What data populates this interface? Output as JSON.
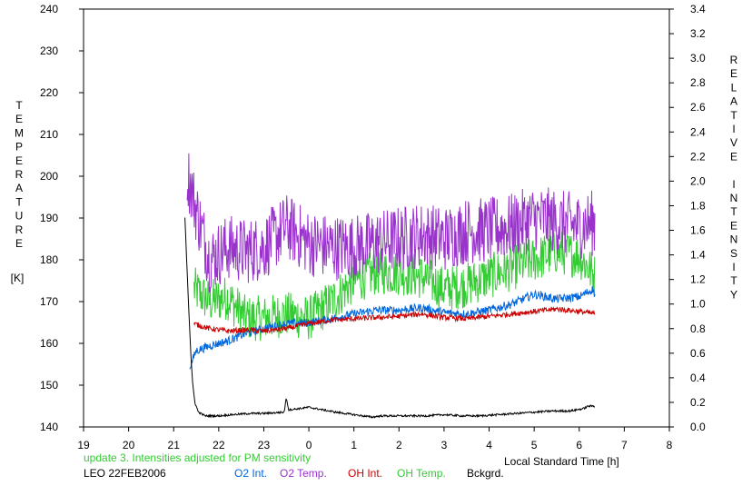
{
  "chart_data": {
    "type": "line",
    "x": {
      "label": "Local Standard Time [h]",
      "range": [
        19,
        32
      ],
      "ticks": [
        {
          "v": 19,
          "t": "19"
        },
        {
          "v": 20,
          "t": "20"
        },
        {
          "v": 21,
          "t": "21"
        },
        {
          "v": 22,
          "t": "22"
        },
        {
          "v": 23,
          "t": "23"
        },
        {
          "v": 24,
          "t": "0"
        },
        {
          "v": 25,
          "t": "1"
        },
        {
          "v": 26,
          "t": "2"
        },
        {
          "v": 27,
          "t": "3"
        },
        {
          "v": 28,
          "t": "4"
        },
        {
          "v": 29,
          "t": "5"
        },
        {
          "v": 30,
          "t": "6"
        },
        {
          "v": 31,
          "t": "7"
        },
        {
          "v": 32,
          "t": "8"
        }
      ]
    },
    "y_left": {
      "label_chars": [
        "T",
        "E",
        "M",
        "P",
        "E",
        "R",
        "A",
        "T",
        "U",
        "R",
        "E"
      ],
      "unit": "[K]",
      "range": [
        140,
        240
      ],
      "ticks": [
        "140",
        "150",
        "160",
        "170",
        "180",
        "190",
        "200",
        "210",
        "220",
        "230",
        "240"
      ]
    },
    "y_right": {
      "label_chars": [
        "R",
        "E",
        "L",
        "A",
        "T",
        "I",
        "V",
        "E",
        " ",
        "I",
        "N",
        "T",
        "E",
        "N",
        "S",
        "I",
        "T",
        "Y"
      ],
      "range": [
        0.0,
        3.4
      ],
      "ticks": [
        "0.0",
        "0.2",
        "0.4",
        "0.6",
        "0.8",
        "1.0",
        "1.2",
        "1.4",
        "1.6",
        "1.8",
        "2.0",
        "2.2",
        "2.4",
        "2.6",
        "2.8",
        "3.0",
        "3.2",
        "3.4"
      ]
    },
    "note": "update 3. Intensities adjusted for PM sensitivity",
    "station": "LEO 22FEB2006",
    "series": [
      {
        "name": "O2 Int.",
        "axis": "right",
        "color": "#0066dd",
        "noise": 0.035,
        "points": [
          [
            21.35,
            0.48
          ],
          [
            21.5,
            0.62
          ],
          [
            21.8,
            0.66
          ],
          [
            22.2,
            0.7
          ],
          [
            22.6,
            0.76
          ],
          [
            23.0,
            0.8
          ],
          [
            23.5,
            0.84
          ],
          [
            24.0,
            0.85
          ],
          [
            24.5,
            0.88
          ],
          [
            25.0,
            0.92
          ],
          [
            25.5,
            0.95
          ],
          [
            26.0,
            0.95
          ],
          [
            26.5,
            0.97
          ],
          [
            27.0,
            0.93
          ],
          [
            27.5,
            0.92
          ],
          [
            28.0,
            0.95
          ],
          [
            28.5,
            1.0
          ],
          [
            29.0,
            1.08
          ],
          [
            29.5,
            1.04
          ],
          [
            30.0,
            1.06
          ],
          [
            30.3,
            1.12
          ],
          [
            30.35,
            1.08
          ]
        ]
      },
      {
        "name": "O2 Temp.",
        "axis": "left",
        "color": "#9933cc",
        "noise": 8,
        "points": [
          [
            21.3,
            201
          ],
          [
            21.5,
            192
          ],
          [
            21.8,
            180
          ],
          [
            22.2,
            183
          ],
          [
            22.6,
            182
          ],
          [
            23.0,
            183
          ],
          [
            23.5,
            188
          ],
          [
            24.0,
            184
          ],
          [
            24.5,
            183
          ],
          [
            25.0,
            183
          ],
          [
            25.5,
            184
          ],
          [
            26.0,
            185
          ],
          [
            26.5,
            186
          ],
          [
            27.0,
            185
          ],
          [
            27.5,
            187
          ],
          [
            28.0,
            187
          ],
          [
            28.5,
            188
          ],
          [
            29.0,
            190
          ],
          [
            29.5,
            189
          ],
          [
            30.0,
            188
          ],
          [
            30.35,
            189
          ]
        ]
      },
      {
        "name": "OH Int.",
        "axis": "right",
        "color": "#cc0000",
        "noise": 0.022,
        "points": [
          [
            21.45,
            0.84
          ],
          [
            21.8,
            0.8
          ],
          [
            22.2,
            0.78
          ],
          [
            22.6,
            0.79
          ],
          [
            23.0,
            0.78
          ],
          [
            23.5,
            0.8
          ],
          [
            24.0,
            0.84
          ],
          [
            24.5,
            0.87
          ],
          [
            25.0,
            0.88
          ],
          [
            25.5,
            0.89
          ],
          [
            26.0,
            0.9
          ],
          [
            26.5,
            0.92
          ],
          [
            27.0,
            0.89
          ],
          [
            27.5,
            0.88
          ],
          [
            28.0,
            0.9
          ],
          [
            28.5,
            0.92
          ],
          [
            29.0,
            0.94
          ],
          [
            29.5,
            0.96
          ],
          [
            30.0,
            0.94
          ],
          [
            30.35,
            0.92
          ]
        ]
      },
      {
        "name": "OH Temp.",
        "axis": "left",
        "color": "#33cc33",
        "noise": 5.5,
        "points": [
          [
            21.45,
            173
          ],
          [
            21.8,
            170
          ],
          [
            22.2,
            171
          ],
          [
            22.6,
            166
          ],
          [
            23.0,
            166
          ],
          [
            23.5,
            167
          ],
          [
            24.0,
            166
          ],
          [
            24.5,
            170
          ],
          [
            25.0,
            175
          ],
          [
            25.5,
            177
          ],
          [
            26.0,
            177
          ],
          [
            26.5,
            176
          ],
          [
            27.0,
            173
          ],
          [
            27.5,
            174
          ],
          [
            28.0,
            176
          ],
          [
            28.5,
            178
          ],
          [
            29.0,
            180
          ],
          [
            29.5,
            182
          ],
          [
            30.0,
            181
          ],
          [
            30.35,
            176
          ]
        ]
      },
      {
        "name": "Bckgrd.",
        "axis": "right",
        "color": "#000000",
        "noise": 0.008,
        "points": [
          [
            21.25,
            1.7
          ],
          [
            21.33,
            1.0
          ],
          [
            21.38,
            0.6
          ],
          [
            21.42,
            0.35
          ],
          [
            21.47,
            0.2
          ],
          [
            21.55,
            0.12
          ],
          [
            21.7,
            0.09
          ],
          [
            22.0,
            0.09
          ],
          [
            22.3,
            0.1
          ],
          [
            22.7,
            0.11
          ],
          [
            23.0,
            0.11
          ],
          [
            23.45,
            0.12
          ],
          [
            23.5,
            0.24
          ],
          [
            23.55,
            0.14
          ],
          [
            23.8,
            0.15
          ],
          [
            24.0,
            0.16
          ],
          [
            24.3,
            0.14
          ],
          [
            24.6,
            0.12
          ],
          [
            25.0,
            0.1
          ],
          [
            25.4,
            0.08
          ],
          [
            25.6,
            0.09
          ],
          [
            25.8,
            0.09
          ],
          [
            26.2,
            0.09
          ],
          [
            26.6,
            0.09
          ],
          [
            27.0,
            0.1
          ],
          [
            27.4,
            0.09
          ],
          [
            27.8,
            0.09
          ],
          [
            28.2,
            0.1
          ],
          [
            28.6,
            0.11
          ],
          [
            29.0,
            0.12
          ],
          [
            29.4,
            0.13
          ],
          [
            29.8,
            0.13
          ],
          [
            30.1,
            0.15
          ],
          [
            30.2,
            0.17
          ],
          [
            30.35,
            0.17
          ]
        ]
      }
    ]
  }
}
